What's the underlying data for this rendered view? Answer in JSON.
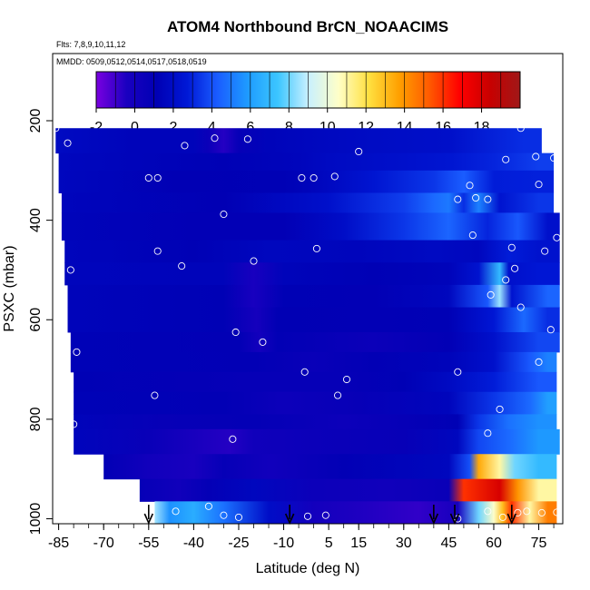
{
  "chart_data": {
    "type": "heatmap",
    "title": "ATOM4 Northbound BrCN_NOAACIMS",
    "subtitle_flights": "Flts: 7,8,9,10,11,12",
    "subtitle_dates": "MMDD: 0509,0512,0514,0517,0518,0519",
    "xlabel": "Latitude (deg N)",
    "ylabel": "PSXC (mbar)",
    "xlim": [
      -87,
      83
    ],
    "ylim": [
      1010,
      65
    ],
    "x_ticks": [
      -85,
      -70,
      -55,
      -40,
      -25,
      -10,
      5,
      15,
      30,
      45,
      60,
      75
    ],
    "x_tick_labels": [
      "-85",
      "-70",
      "-55",
      "-40",
      "-25",
      "-10",
      "5",
      "15",
      "30",
      "45",
      "60",
      "75"
    ],
    "y_ticks": [
      200,
      400,
      600,
      800,
      1000
    ],
    "y_tick_labels": [
      "200",
      "400",
      "600",
      "800",
      "1000"
    ],
    "colorbar": {
      "ticks": [
        -2,
        0,
        2,
        4,
        6,
        8,
        10,
        12,
        14,
        16,
        18
      ],
      "tick_labels": [
        "-2",
        "0",
        "2",
        "4",
        "6",
        "8",
        "10",
        "12",
        "14",
        "16",
        "18"
      ],
      "range": [
        -2,
        20
      ],
      "colors": [
        "#7a00e0",
        "#1a00c0",
        "#0000b4",
        "#0018d6",
        "#1a5cff",
        "#1e9bff",
        "#3cc6ff",
        "#c8f0ff",
        "#ffffc8",
        "#ffe040",
        "#ffa000",
        "#ff5a00",
        "#ff0000",
        "#c80000",
        "#a01818"
      ]
    },
    "bands": [
      {
        "p0": 215,
        "p1": 265,
        "lat0": -86,
        "lat1": 76,
        "segments": [
          [
            -86,
            1.8
          ],
          [
            -60,
            1.4
          ],
          [
            -40,
            1.4
          ],
          [
            -35,
            0.5
          ],
          [
            -30,
            -0.6
          ],
          [
            -25,
            0.8
          ],
          [
            -15,
            1.4
          ],
          [
            20,
            1.9
          ],
          [
            45,
            2.1
          ],
          [
            70,
            3.2
          ]
        ]
      },
      {
        "p0": 265,
        "p1": 300,
        "lat0": -85,
        "lat1": 80,
        "segments": [
          [
            -85,
            1.6
          ],
          [
            -30,
            1.2
          ],
          [
            -5,
            1.5
          ],
          [
            5,
            1.8
          ],
          [
            30,
            2.2
          ],
          [
            45,
            2.5
          ],
          [
            60,
            3.0
          ],
          [
            75,
            3.6
          ]
        ]
      },
      {
        "p0": 300,
        "p1": 345,
        "lat0": -85,
        "lat1": 80,
        "segments": [
          [
            -85,
            1.6
          ],
          [
            -45,
            1.1
          ],
          [
            -10,
            1.2
          ],
          [
            0,
            1.5
          ],
          [
            20,
            2.5
          ],
          [
            40,
            3.4
          ],
          [
            50,
            4.3
          ],
          [
            60,
            2.8
          ],
          [
            75,
            2.9
          ]
        ]
      },
      {
        "p0": 345,
        "p1": 385,
        "lat0": -84,
        "lat1": 80,
        "segments": [
          [
            -84,
            1.5
          ],
          [
            -30,
            1.1
          ],
          [
            5,
            2.2
          ],
          [
            30,
            3.6
          ],
          [
            40,
            4.6
          ],
          [
            45,
            5.0
          ],
          [
            50,
            3.2
          ],
          [
            55,
            5.2
          ],
          [
            62,
            2.4
          ],
          [
            75,
            3.4
          ]
        ]
      },
      {
        "p0": 385,
        "p1": 440,
        "lat0": -84,
        "lat1": 82,
        "segments": [
          [
            -84,
            1.4
          ],
          [
            -40,
            1.0
          ],
          [
            -10,
            1.0
          ],
          [
            10,
            2.0
          ],
          [
            30,
            3.4
          ],
          [
            45,
            4.5
          ],
          [
            58,
            3.0
          ],
          [
            68,
            4.2
          ],
          [
            78,
            2.2
          ]
        ]
      },
      {
        "p0": 440,
        "p1": 485,
        "lat0": -83,
        "lat1": 82,
        "segments": [
          [
            -83,
            1.5
          ],
          [
            -40,
            1.2
          ],
          [
            -15,
            1.6
          ],
          [
            15,
            1.5
          ],
          [
            40,
            1.8
          ],
          [
            55,
            1.6
          ],
          [
            65,
            2.8
          ],
          [
            75,
            2.3
          ]
        ]
      },
      {
        "p0": 485,
        "p1": 530,
        "lat0": -83,
        "lat1": 82,
        "segments": [
          [
            -83,
            1.5
          ],
          [
            -30,
            1.4
          ],
          [
            -20,
            -0.3
          ],
          [
            -10,
            1.4
          ],
          [
            20,
            1.2
          ],
          [
            45,
            1.4
          ],
          [
            55,
            2.4
          ],
          [
            62,
            7.0
          ],
          [
            65,
            2.2
          ],
          [
            75,
            2.6
          ]
        ]
      },
      {
        "p0": 530,
        "p1": 575,
        "lat0": -82,
        "lat1": 82,
        "segments": [
          [
            -82,
            1.4
          ],
          [
            -30,
            1.2
          ],
          [
            -20,
            -0.3
          ],
          [
            -10,
            1.2
          ],
          [
            20,
            1.0
          ],
          [
            45,
            1.6
          ],
          [
            58,
            4.2
          ],
          [
            62,
            8.5
          ],
          [
            66,
            2.4
          ],
          [
            78,
            4.5
          ]
        ]
      },
      {
        "p0": 575,
        "p1": 625,
        "lat0": -82,
        "lat1": 82,
        "segments": [
          [
            -82,
            1.4
          ],
          [
            -30,
            1.2
          ],
          [
            -19,
            -0.1
          ],
          [
            -12,
            1.1
          ],
          [
            20,
            1.0
          ],
          [
            45,
            1.2
          ],
          [
            60,
            2.6
          ],
          [
            70,
            4.6
          ],
          [
            78,
            3.2
          ]
        ]
      },
      {
        "p0": 625,
        "p1": 665,
        "lat0": -81,
        "lat1": 82,
        "segments": [
          [
            -81,
            1.3
          ],
          [
            -25,
            1.0
          ],
          [
            -18,
            0.0
          ],
          [
            -12,
            1.0
          ],
          [
            20,
            0.5
          ],
          [
            45,
            1.0
          ],
          [
            60,
            2.2
          ],
          [
            75,
            3.8
          ]
        ]
      },
      {
        "p0": 665,
        "p1": 705,
        "lat0": -81,
        "lat1": 81,
        "segments": [
          [
            -81,
            1.3
          ],
          [
            -20,
            1.0
          ],
          [
            0,
            0.6
          ],
          [
            20,
            1.0
          ],
          [
            45,
            1.4
          ],
          [
            60,
            2.2
          ],
          [
            72,
            4.2
          ],
          [
            78,
            5.2
          ]
        ]
      },
      {
        "p0": 705,
        "p1": 745,
        "lat0": -80,
        "lat1": 81,
        "segments": [
          [
            -80,
            1.2
          ],
          [
            -20,
            0.8
          ],
          [
            10,
            0.8
          ],
          [
            30,
            1.2
          ],
          [
            45,
            1.8
          ],
          [
            60,
            2.8
          ],
          [
            75,
            4.2
          ]
        ]
      },
      {
        "p0": 745,
        "p1": 790,
        "lat0": -80,
        "lat1": 81,
        "segments": [
          [
            -80,
            1.3
          ],
          [
            -30,
            1.0
          ],
          [
            -10,
            0.4
          ],
          [
            15,
            0.7
          ],
          [
            45,
            1.5
          ],
          [
            60,
            3.4
          ],
          [
            72,
            4.6
          ],
          [
            78,
            6.0
          ]
        ]
      },
      {
        "p0": 790,
        "p1": 820,
        "lat0": -80,
        "lat1": 81,
        "segments": [
          [
            -80,
            1.4
          ],
          [
            -50,
            0.7
          ],
          [
            -20,
            0.9
          ],
          [
            10,
            0.4
          ],
          [
            30,
            0.8
          ],
          [
            48,
            1.2
          ],
          [
            55,
            3.4
          ],
          [
            65,
            4.8
          ],
          [
            75,
            5.6
          ]
        ]
      },
      {
        "p0": 820,
        "p1": 870,
        "lat0": -80,
        "lat1": 82,
        "segments": [
          [
            -80,
            1.5
          ],
          [
            -55,
            0.6
          ],
          [
            -28,
            -0.6
          ],
          [
            -20,
            0.2
          ],
          [
            0,
            0.5
          ],
          [
            30,
            0.7
          ],
          [
            48,
            1.6
          ],
          [
            55,
            3.8
          ],
          [
            65,
            4.6
          ],
          [
            75,
            5.8
          ]
        ]
      },
      {
        "p0": 870,
        "p1": 920,
        "lat0": -70,
        "lat1": 81,
        "segments": [
          [
            -70,
            1.0
          ],
          [
            -55,
            0.1
          ],
          [
            -40,
            -0.3
          ],
          [
            -30,
            0.8
          ],
          [
            -15,
            0.1
          ],
          [
            10,
            1.0
          ],
          [
            45,
            1.6
          ],
          [
            52,
            4.0
          ],
          [
            55,
            13.5
          ],
          [
            62,
            11.0
          ],
          [
            67,
            8.0
          ],
          [
            75,
            7.0
          ]
        ]
      },
      {
        "p0": 920,
        "p1": 965,
        "lat0": -58,
        "lat1": 81,
        "segments": [
          [
            -58,
            0.8
          ],
          [
            -45,
            0.2
          ],
          [
            -35,
            0.9
          ],
          [
            -20,
            1.6
          ],
          [
            0,
            0.4
          ],
          [
            25,
            0.2
          ],
          [
            45,
            0.6
          ],
          [
            50,
            16.0
          ],
          [
            62,
            18.0
          ],
          [
            68,
            14.0
          ],
          [
            75,
            11.0
          ]
        ]
      },
      {
        "p0": 965,
        "p1": 1010,
        "lat0": -53,
        "lat1": 81,
        "segments": [
          [
            -53,
            8.6
          ],
          [
            -48,
            5.6
          ],
          [
            -40,
            6.5
          ],
          [
            -30,
            4.8
          ],
          [
            -15,
            2.0
          ],
          [
            0,
            0.0
          ],
          [
            15,
            -0.5
          ],
          [
            35,
            -0.8
          ],
          [
            48,
            -0.2
          ],
          [
            55,
            8.0
          ],
          [
            60,
            10.5
          ],
          [
            63,
            13.0
          ],
          [
            66,
            16.0
          ],
          [
            72,
            11.0
          ],
          [
            78,
            14.5
          ]
        ]
      }
    ],
    "flight_points": [
      [
        -86,
        215
      ],
      [
        -82,
        245
      ],
      [
        -43,
        250
      ],
      [
        -33,
        235
      ],
      [
        -22,
        237
      ],
      [
        15,
        262
      ],
      [
        -55,
        315
      ],
      [
        -52,
        315
      ],
      [
        -4,
        315
      ],
      [
        0,
        315
      ],
      [
        7,
        312
      ],
      [
        -30,
        388
      ],
      [
        48,
        358
      ],
      [
        52,
        330
      ],
      [
        54,
        355
      ],
      [
        58,
        358
      ],
      [
        64,
        278
      ],
      [
        69,
        215
      ],
      [
        74,
        272
      ],
      [
        80,
        275
      ],
      [
        82,
        272
      ],
      [
        75,
        328
      ],
      [
        81,
        435
      ],
      [
        53,
        430
      ],
      [
        -52,
        462
      ],
      [
        1,
        457
      ],
      [
        -44,
        492
      ],
      [
        -20,
        482
      ],
      [
        66,
        455
      ],
      [
        77,
        462
      ],
      [
        -81,
        500
      ],
      [
        67,
        497
      ],
      [
        64,
        520
      ],
      [
        59,
        550
      ],
      [
        69,
        575
      ],
      [
        -26,
        625
      ],
      [
        -17,
        645
      ],
      [
        -79,
        665
      ],
      [
        79,
        620
      ],
      [
        -3,
        705
      ],
      [
        48,
        705
      ],
      [
        75,
        685
      ],
      [
        11,
        720
      ],
      [
        -53,
        752
      ],
      [
        8,
        752
      ],
      [
        62,
        780
      ],
      [
        -80,
        810
      ],
      [
        -27,
        840
      ],
      [
        58,
        828
      ],
      [
        -46,
        985
      ],
      [
        -35,
        975
      ],
      [
        -30,
        993
      ],
      [
        -25,
        997
      ],
      [
        -2,
        995
      ],
      [
        4,
        993
      ],
      [
        48,
        1000
      ],
      [
        58,
        985
      ],
      [
        63,
        997
      ],
      [
        68,
        988
      ],
      [
        71,
        985
      ],
      [
        76,
        988
      ],
      [
        81,
        987
      ]
    ],
    "arrow_latitudes": [
      -55,
      -8,
      40,
      47,
      66
    ]
  }
}
